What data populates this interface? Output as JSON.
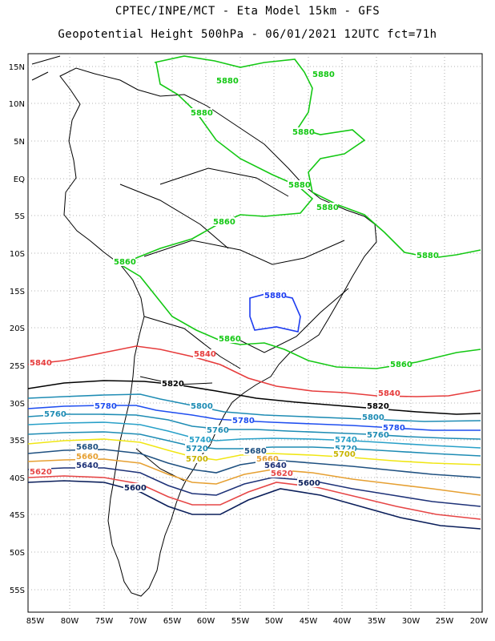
{
  "header": {
    "line1": "CPTEC/INPE/MCT -  Eta Model 15km - GFS",
    "line2": "Geopotential Height 500hPa - 06/01/2021 12UTC fct=71h"
  },
  "axes": {
    "lon_ticks": [
      "85W",
      "80W",
      "75W",
      "70W",
      "65W",
      "60W",
      "55W",
      "50W",
      "45W",
      "40W",
      "35W",
      "30W",
      "25W",
      "20W"
    ],
    "lat_ticks": [
      "15N",
      "10N",
      "5N",
      "EQ",
      "5S",
      "10S",
      "15S",
      "20S",
      "25S",
      "30S",
      "35S",
      "40S",
      "45S",
      "50S",
      "55S"
    ]
  },
  "contours": [
    {
      "level": "5880",
      "color": "#14c814"
    },
    {
      "level": "5880",
      "color": "#1d3cf0"
    },
    {
      "level": "5860",
      "color": "#14c814"
    },
    {
      "level": "5840",
      "color": "#e63c3c"
    },
    {
      "level": "5820",
      "color": "#000000"
    },
    {
      "level": "5800",
      "color": "#1e8cb4"
    },
    {
      "level": "5780",
      "color": "#1f4ef0"
    },
    {
      "level": "5760",
      "color": "#1e8cb4"
    },
    {
      "level": "5740",
      "color": "#28a0c8"
    },
    {
      "level": "5720",
      "color": "#1e8cb4"
    },
    {
      "level": "5700",
      "color": "#f0e614"
    },
    {
      "level": "5680",
      "color": "#1e5080"
    },
    {
      "level": "5660",
      "color": "#e6a032"
    },
    {
      "level": "5640",
      "color": "#1e3278"
    },
    {
      "level": "5620",
      "color": "#e64646"
    },
    {
      "level": "5600",
      "color": "#0a1e5a"
    }
  ],
  "contour_labels": [
    {
      "text": "5880",
      "color": "#14c814"
    },
    {
      "text": "5880",
      "color": "#14c814"
    },
    {
      "text": "5880",
      "color": "#14c814"
    },
    {
      "text": "5880",
      "color": "#14c814"
    },
    {
      "text": "5880",
      "color": "#14c814"
    },
    {
      "text": "5880",
      "color": "#14c814"
    },
    {
      "text": "5880",
      "color": "#14c814"
    },
    {
      "text": "5860",
      "color": "#14c814"
    },
    {
      "text": "5860",
      "color": "#14c814"
    },
    {
      "text": "5860",
      "color": "#14c814"
    },
    {
      "text": "5860",
      "color": "#14c814"
    },
    {
      "text": "5880",
      "color": "#1d3cf0"
    },
    {
      "text": "5840",
      "color": "#e63c3c"
    },
    {
      "text": "5840",
      "color": "#e63c3c"
    },
    {
      "text": "5840",
      "color": "#e63c3c"
    },
    {
      "text": "5820",
      "color": "#000000"
    },
    {
      "text": "5820",
      "color": "#000000"
    },
    {
      "text": "5800",
      "color": "#1e8cb4"
    },
    {
      "text": "5800",
      "color": "#1e8cb4"
    },
    {
      "text": "5780",
      "color": "#1f4ef0"
    },
    {
      "text": "5780",
      "color": "#1f4ef0"
    },
    {
      "text": "5780",
      "color": "#1f4ef0"
    },
    {
      "text": "5760",
      "color": "#1e8cb4"
    },
    {
      "text": "5760",
      "color": "#1e8cb4"
    },
    {
      "text": "5760",
      "color": "#1e8cb4"
    },
    {
      "text": "5740",
      "color": "#28a0c8"
    },
    {
      "text": "5740",
      "color": "#28a0c8"
    },
    {
      "text": "5720",
      "color": "#1e8cb4"
    },
    {
      "text": "5720",
      "color": "#1e8cb4"
    },
    {
      "text": "5700",
      "color": "#c8b400"
    },
    {
      "text": "5700",
      "color": "#c8b400"
    },
    {
      "text": "5680",
      "color": "#1e5080"
    },
    {
      "text": "5680",
      "color": "#1e5080"
    },
    {
      "text": "5660",
      "color": "#e6a032"
    },
    {
      "text": "5660",
      "color": "#e6a032"
    },
    {
      "text": "5640",
      "color": "#1e3278"
    },
    {
      "text": "5640",
      "color": "#1e3278"
    },
    {
      "text": "5620",
      "color": "#e64646"
    },
    {
      "text": "5620",
      "color": "#e64646"
    },
    {
      "text": "5600",
      "color": "#0a1e5a"
    },
    {
      "text": "5600",
      "color": "#0a1e5a"
    }
  ]
}
